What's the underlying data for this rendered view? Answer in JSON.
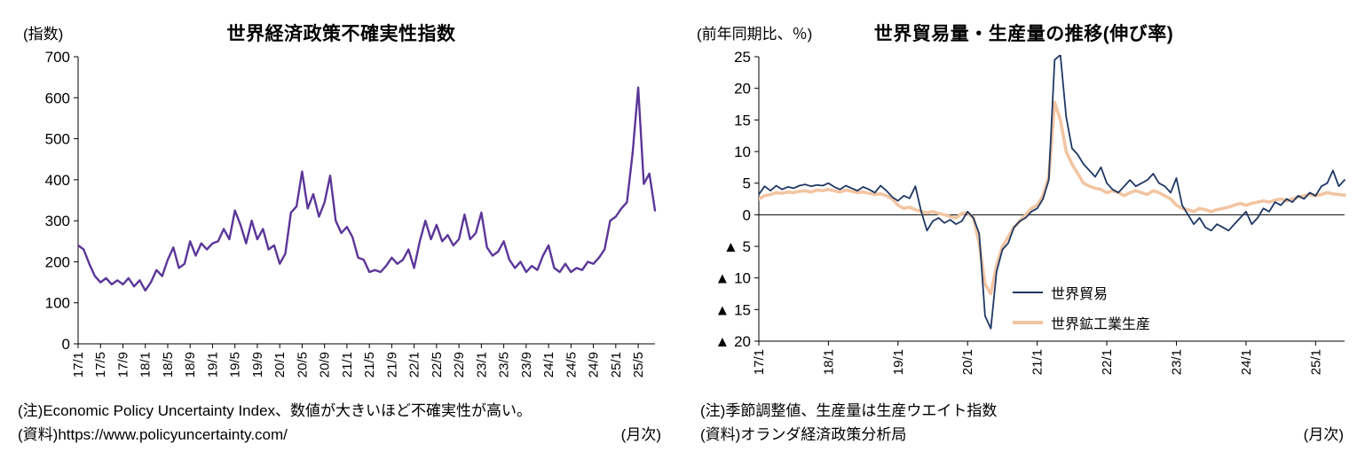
{
  "page": {
    "background": "#ffffff"
  },
  "chart_data": [
    {
      "type": "line",
      "title": "世界経済政策不確実性指数",
      "unit_label": "(指数)",
      "freq_label": "(月次)",
      "notes": [
        "(注)Economic Policy Uncertainty Index、数値が大きいほど不確実性が高い。",
        "(資料)https://www.policyuncertainty.com/"
      ],
      "ylim": [
        0,
        700
      ],
      "yticks": [
        0,
        100,
        200,
        300,
        400,
        500,
        600,
        700
      ],
      "ytick_labels": [
        "0",
        "100",
        "200",
        "300",
        "400",
        "500",
        "600",
        "700"
      ],
      "x_tick_rotation": 90,
      "grid": false,
      "xticks_shown": [
        "17/1",
        "17/5",
        "17/9",
        "18/1",
        "18/5",
        "18/9",
        "19/1",
        "19/5",
        "19/9",
        "20/1",
        "20/5",
        "20/9",
        "21/1",
        "21/5",
        "21/9",
        "22/1",
        "22/5",
        "22/9",
        "23/1",
        "23/5",
        "23/9",
        "24/1",
        "24/5",
        "24/9",
        "25/1",
        "25/5"
      ],
      "x": [
        "17/1",
        "17/2",
        "17/3",
        "17/4",
        "17/5",
        "17/6",
        "17/7",
        "17/8",
        "17/9",
        "17/10",
        "17/11",
        "17/12",
        "18/1",
        "18/2",
        "18/3",
        "18/4",
        "18/5",
        "18/6",
        "18/7",
        "18/8",
        "18/9",
        "18/10",
        "18/11",
        "18/12",
        "19/1",
        "19/2",
        "19/3",
        "19/4",
        "19/5",
        "19/6",
        "19/7",
        "19/8",
        "19/9",
        "19/10",
        "19/11",
        "19/12",
        "20/1",
        "20/2",
        "20/3",
        "20/4",
        "20/5",
        "20/6",
        "20/7",
        "20/8",
        "20/9",
        "20/10",
        "20/11",
        "20/12",
        "21/1",
        "21/2",
        "21/3",
        "21/4",
        "21/5",
        "21/6",
        "21/7",
        "21/8",
        "21/9",
        "21/10",
        "21/11",
        "21/12",
        "22/1",
        "22/2",
        "22/3",
        "22/4",
        "22/5",
        "22/6",
        "22/7",
        "22/8",
        "22/9",
        "22/10",
        "22/11",
        "22/12",
        "23/1",
        "23/2",
        "23/3",
        "23/4",
        "23/5",
        "23/6",
        "23/7",
        "23/8",
        "23/9",
        "23/10",
        "23/11",
        "23/12",
        "24/1",
        "24/2",
        "24/3",
        "24/4",
        "24/5",
        "24/6",
        "24/7",
        "24/8",
        "24/9",
        "24/10",
        "24/11",
        "24/12",
        "25/1",
        "25/2",
        "25/3",
        "25/4",
        "25/5",
        "25/6",
        "25/7",
        "25/8"
      ],
      "series": [
        {
          "name": "世界経済政策不確実性指数",
          "color": "#5C3699",
          "width": 2.4,
          "values": [
            240,
            230,
            195,
            165,
            150,
            160,
            145,
            155,
            145,
            160,
            140,
            155,
            130,
            150,
            180,
            165,
            205,
            235,
            185,
            195,
            250,
            215,
            245,
            230,
            245,
            250,
            280,
            255,
            325,
            290,
            245,
            300,
            255,
            280,
            230,
            240,
            195,
            220,
            320,
            335,
            420,
            330,
            365,
            310,
            345,
            410,
            300,
            270,
            285,
            260,
            210,
            205,
            175,
            180,
            175,
            190,
            210,
            195,
            205,
            230,
            185,
            250,
            300,
            255,
            290,
            250,
            265,
            240,
            255,
            315,
            255,
            270,
            320,
            235,
            215,
            225,
            250,
            205,
            185,
            200,
            175,
            190,
            180,
            215,
            240,
            185,
            175,
            195,
            175,
            185,
            180,
            200,
            195,
            210,
            230,
            300,
            310,
            330,
            345,
            465,
            625,
            390,
            415,
            325
          ]
        }
      ],
      "legend": null
    },
    {
      "type": "line",
      "title": "世界貿易量・生産量の推移(伸び率)",
      "unit_label": "(前年同期比、％)",
      "freq_label": "(月次)",
      "notes": [
        "(注)季節調整値、生産量は生産ウエイト指数",
        "(資料)オランダ経済政策分析局"
      ],
      "ylim": [
        -20,
        25
      ],
      "yticks": [
        25,
        20,
        15,
        10,
        5,
        0,
        -5,
        -10,
        -15,
        -20
      ],
      "ytick_labels": [
        "25",
        "20",
        "15",
        "10",
        "5",
        "0",
        "▲ 5",
        "▲ 10",
        "▲ 15",
        "▲ 20"
      ],
      "x_tick_rotation": 90,
      "grid": false,
      "zero_line": true,
      "xticks_shown": [
        "17/1",
        "18/1",
        "19/1",
        "20/1",
        "21/1",
        "22/1",
        "23/1",
        "24/1",
        "25/1"
      ],
      "x": [
        "17/1",
        "17/2",
        "17/3",
        "17/4",
        "17/5",
        "17/6",
        "17/7",
        "17/8",
        "17/9",
        "17/10",
        "17/11",
        "17/12",
        "18/1",
        "18/2",
        "18/3",
        "18/4",
        "18/5",
        "18/6",
        "18/7",
        "18/8",
        "18/9",
        "18/10",
        "18/11",
        "18/12",
        "19/1",
        "19/2",
        "19/3",
        "19/4",
        "19/5",
        "19/6",
        "19/7",
        "19/8",
        "19/9",
        "19/10",
        "19/11",
        "19/12",
        "20/1",
        "20/2",
        "20/3",
        "20/4",
        "20/5",
        "20/6",
        "20/7",
        "20/8",
        "20/9",
        "20/10",
        "20/11",
        "20/12",
        "21/1",
        "21/2",
        "21/3",
        "21/4",
        "21/5",
        "21/6",
        "21/7",
        "21/8",
        "21/9",
        "21/10",
        "21/11",
        "21/12",
        "22/1",
        "22/2",
        "22/3",
        "22/4",
        "22/5",
        "22/6",
        "22/7",
        "22/8",
        "22/9",
        "22/10",
        "22/11",
        "22/12",
        "23/1",
        "23/2",
        "23/3",
        "23/4",
        "23/5",
        "23/6",
        "23/7",
        "23/8",
        "23/9",
        "23/10",
        "23/11",
        "23/12",
        "24/1",
        "24/2",
        "24/3",
        "24/4",
        "24/5",
        "24/6",
        "24/7",
        "24/8",
        "24/9",
        "24/10",
        "24/11",
        "24/12",
        "25/1",
        "25/2",
        "25/3",
        "25/4",
        "25/5",
        "25/6"
      ],
      "series": [
        {
          "name": "世界貿易",
          "color": "#1F3864",
          "width": 1.8,
          "values": [
            3.2,
            4.5,
            3.8,
            4.6,
            4.0,
            4.4,
            4.2,
            4.6,
            4.8,
            4.5,
            4.7,
            4.6,
            5.0,
            4.4,
            4.0,
            4.6,
            4.2,
            3.8,
            4.4,
            4.0,
            3.5,
            4.6,
            3.8,
            2.8,
            2.2,
            3.0,
            2.6,
            4.5,
            0.5,
            -2.5,
            -1.0,
            -0.5,
            -1.3,
            -0.8,
            -1.5,
            -1.0,
            0.5,
            -0.5,
            -3.0,
            -16.0,
            -18.0,
            -9.0,
            -5.5,
            -4.5,
            -2.0,
            -1.0,
            -0.5,
            0.5,
            1.0,
            2.5,
            5.5,
            24.5,
            25.3,
            15.5,
            10.5,
            9.5,
            8.0,
            7.0,
            6.0,
            7.5,
            5.0,
            4.0,
            3.5,
            4.5,
            5.5,
            4.5,
            5.0,
            5.5,
            6.5,
            5.0,
            4.5,
            3.5,
            5.8,
            1.5,
            0.0,
            -1.5,
            -0.5,
            -2.0,
            -2.5,
            -1.5,
            -2.0,
            -2.5,
            -1.5,
            -0.5,
            0.5,
            -1.5,
            -0.5,
            1.0,
            0.5,
            2.0,
            1.5,
            2.5,
            2.0,
            3.0,
            2.5,
            3.5,
            3.0,
            4.5,
            5.0,
            7.0,
            4.5,
            5.5
          ]
        },
        {
          "name": "世界鉱工業生産",
          "color": "#F2C5A2",
          "width": 3.6,
          "values": [
            2.5,
            3.0,
            3.2,
            3.5,
            3.4,
            3.6,
            3.5,
            3.7,
            3.8,
            3.6,
            3.9,
            3.8,
            4.0,
            3.8,
            3.6,
            3.9,
            3.7,
            3.5,
            3.6,
            3.4,
            3.2,
            3.3,
            3.0,
            2.5,
            1.5,
            1.0,
            1.2,
            0.8,
            0.5,
            0.3,
            0.5,
            0.2,
            0.0,
            -0.3,
            -0.5,
            0.2,
            0.3,
            -0.5,
            -4.5,
            -11.0,
            -12.5,
            -8.0,
            -5.0,
            -3.5,
            -2.0,
            -1.0,
            0.0,
            1.0,
            1.5,
            3.0,
            6.0,
            17.8,
            15.0,
            10.0,
            8.0,
            6.5,
            5.0,
            4.5,
            4.2,
            4.0,
            3.5,
            3.8,
            3.5,
            3.0,
            3.5,
            3.8,
            3.5,
            3.2,
            3.8,
            3.5,
            3.0,
            2.5,
            1.5,
            1.0,
            0.8,
            0.5,
            1.0,
            0.8,
            0.5,
            0.8,
            1.0,
            1.2,
            1.5,
            1.8,
            1.5,
            1.8,
            2.0,
            2.2,
            2.0,
            2.3,
            2.5,
            2.2,
            2.5,
            2.8,
            3.0,
            3.2,
            3.0,
            3.2,
            3.5,
            3.3,
            3.2,
            3.1
          ]
        }
      ],
      "legend": {
        "position": "inside-right-lower"
      }
    }
  ]
}
